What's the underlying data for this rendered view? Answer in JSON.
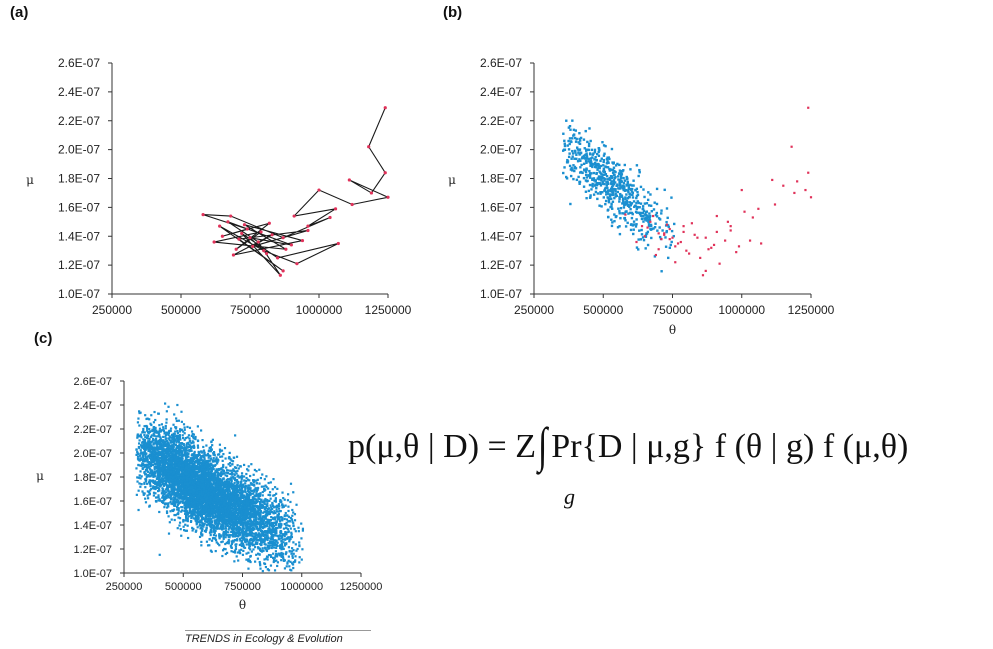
{
  "panels": {
    "a": "(a)",
    "b": "(b)",
    "c": "(c)"
  },
  "formula": {
    "lhs": "p(μ,θ | D) = Z",
    "integral": "∫",
    "rhs": "Pr{D | μ,g} f (θ | g) f (μ,θ)",
    "subscript": "g"
  },
  "credit": "TRENDS in Ecology & Evolution",
  "colors": {
    "trace_line": "#1a1a1a",
    "trace_points": "#e0325a",
    "posterior": "#1a8fd0"
  },
  "chart_data": [
    {
      "type": "line",
      "panel": "(a)",
      "xlabel": "",
      "ylabel": "μ",
      "xlim": [
        250000,
        1250000
      ],
      "ylim": [
        1e-07,
        2.6e-07
      ],
      "xticks": [
        "250000",
        "500000",
        "750000",
        "1000000",
        "1250000"
      ],
      "yticks": [
        "1.0E-07",
        "1.2E-07",
        "1.4E-07",
        "1.6E-07",
        "1.8E-07",
        "2.0E-07",
        "2.2E-07",
        "2.4E-07",
        "2.6E-07"
      ],
      "series": [
        {
          "x": [
            1240000,
            1180000,
            1240000,
            1190000,
            1110000,
            1250000,
            1120000,
            1000000,
            910000,
            1060000,
            960000,
            1040000,
            870000,
            680000,
            580000,
            740000,
            650000,
            820000,
            700000,
            790000,
            620000,
            880000,
            730000,
            940000,
            690000,
            830000,
            760000,
            960000,
            710000,
            870000,
            640000,
            800000,
            920000,
            1070000,
            850000,
            720000,
            860000,
            780000,
            670000,
            900000,
            750000,
            810000
          ],
          "y": [
            2.29e-07,
            2.02e-07,
            1.84e-07,
            1.7e-07,
            1.79e-07,
            1.67e-07,
            1.62e-07,
            1.72e-07,
            1.54e-07,
            1.59e-07,
            1.47e-07,
            1.53e-07,
            1.39e-07,
            1.54e-07,
            1.55e-07,
            1.45e-07,
            1.4e-07,
            1.49e-07,
            1.31e-07,
            1.43e-07,
            1.36e-07,
            1.31e-07,
            1.48e-07,
            1.37e-07,
            1.27e-07,
            1.41e-07,
            1.33e-07,
            1.44e-07,
            1.38e-07,
            1.16e-07,
            1.47e-07,
            1.3e-07,
            1.21e-07,
            1.35e-07,
            1.25e-07,
            1.42e-07,
            1.13e-07,
            1.36e-07,
            1.5e-07,
            1.34e-07,
            1.39e-07,
            1.28e-07
          ]
        }
      ]
    },
    {
      "type": "scatter",
      "panel": "(b)",
      "xlabel": "θ",
      "ylabel": "μ",
      "xlim": [
        250000,
        1250000
      ],
      "ylim": [
        1e-07,
        2.6e-07
      ],
      "xticks": [
        "250000",
        "500000",
        "750000",
        "1000000",
        "1250000"
      ],
      "yticks": [
        "1.0E-07",
        "1.2E-07",
        "1.4E-07",
        "1.6E-07",
        "1.8E-07",
        "2.0E-07",
        "2.2E-07",
        "2.4E-07",
        "2.6E-07"
      ],
      "series": [
        {
          "role": "samples",
          "color": "#1a8fd0",
          "count": 650,
          "x_range": [
            350000,
            780000
          ],
          "trend": {
            "x": [
              350000,
              450000,
              550000,
              650000,
              750000
            ],
            "y": [
              2.03e-07,
              1.9e-07,
              1.72e-07,
              1.55e-07,
              1.42e-07
            ]
          },
          "spread": 1.1e-08
        },
        {
          "role": "trace-points",
          "color": "#e0325a",
          "x": [
            1240000,
            1180000,
            1240000,
            1190000,
            1110000,
            1250000,
            1120000,
            1000000,
            910000,
            1060000,
            960000,
            1040000,
            870000,
            680000,
            580000,
            740000,
            650000,
            820000,
            700000,
            790000,
            620000,
            880000,
            730000,
            940000,
            690000,
            830000,
            760000,
            960000,
            710000,
            870000,
            640000,
            800000,
            920000,
            1070000,
            850000,
            720000,
            860000,
            780000,
            670000,
            900000,
            750000,
            810000,
            990000,
            950000,
            1010000,
            1150000,
            1200000,
            1230000,
            720000,
            760000,
            790000,
            840000,
            910000,
            980000,
            1030000,
            660000,
            700000,
            740000,
            770000,
            890000
          ],
          "y": [
            2.29e-07,
            2.02e-07,
            1.84e-07,
            1.7e-07,
            1.79e-07,
            1.67e-07,
            1.62e-07,
            1.72e-07,
            1.54e-07,
            1.59e-07,
            1.47e-07,
            1.53e-07,
            1.39e-07,
            1.54e-07,
            1.55e-07,
            1.45e-07,
            1.4e-07,
            1.49e-07,
            1.31e-07,
            1.43e-07,
            1.36e-07,
            1.31e-07,
            1.48e-07,
            1.37e-07,
            1.27e-07,
            1.41e-07,
            1.33e-07,
            1.44e-07,
            1.38e-07,
            1.16e-07,
            1.47e-07,
            1.3e-07,
            1.21e-07,
            1.35e-07,
            1.25e-07,
            1.42e-07,
            1.13e-07,
            1.36e-07,
            1.5e-07,
            1.34e-07,
            1.39e-07,
            1.28e-07,
            1.33e-07,
            1.5e-07,
            1.57e-07,
            1.75e-07,
            1.78e-07,
            1.72e-07,
            1.41e-07,
            1.22e-07,
            1.47e-07,
            1.39e-07,
            1.43e-07,
            1.29e-07,
            1.37e-07,
            1.46e-07,
            1.42e-07,
            1.38e-07,
            1.35e-07,
            1.32e-07
          ]
        }
      ]
    },
    {
      "type": "scatter",
      "panel": "(c)",
      "xlabel": "θ",
      "ylabel": "μ",
      "xlim": [
        250000,
        1250000
      ],
      "ylim": [
        1e-07,
        2.6e-07
      ],
      "xticks": [
        "250000",
        "500000",
        "750000",
        "1000000",
        "1250000"
      ],
      "yticks": [
        "1.0E-07",
        "1.2E-07",
        "1.4E-07",
        "1.6E-07",
        "1.8E-07",
        "2.0E-07",
        "2.2E-07",
        "2.4E-07",
        "2.6E-07"
      ],
      "series": [
        {
          "role": "samples",
          "color": "#1a8fd0",
          "count": 6500,
          "x_range": [
            300000,
            1010000
          ],
          "trend": {
            "x": [
              300000,
              400000,
              500000,
              600000,
              700000,
              800000
            ],
            "y": [
              2.02e-07,
              1.92e-07,
              1.8e-07,
              1.67e-07,
              1.56e-07,
              1.46e-07
            ]
          },
          "spread": 1.6e-08
        }
      ]
    }
  ]
}
